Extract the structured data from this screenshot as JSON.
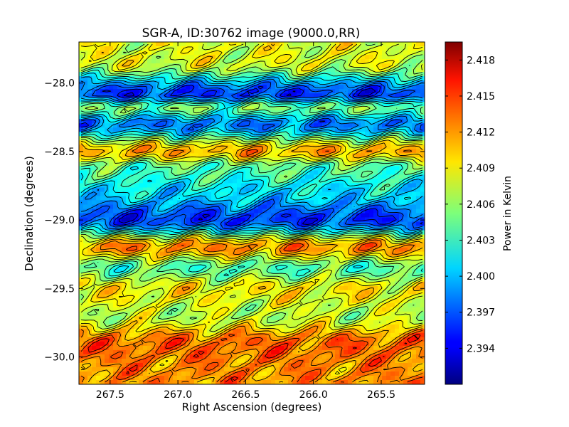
{
  "chart_data": {
    "type": "heatmap",
    "title": "SGR-A, ID:30762 image (9000.0,RR)",
    "xlabel": "Right Ascension (degrees)",
    "ylabel": "Declination (degrees)",
    "colorbar_label": "Power in Kelvin",
    "xlim": [
      267.73,
      265.18
    ],
    "ylim": [
      -30.2,
      -27.7
    ],
    "x_ticks": [
      267.5,
      267.0,
      266.5,
      266.0,
      265.5
    ],
    "x_tick_labels": [
      "267.5",
      "267.0",
      "266.5",
      "266.0",
      "265.5"
    ],
    "y_ticks": [
      -28.0,
      -28.5,
      -29.0,
      -29.5,
      -30.0
    ],
    "y_tick_labels": [
      "−28.0",
      "−28.5",
      "−29.0",
      "−29.5",
      "−30.0"
    ],
    "colorbar_range": [
      2.391,
      2.4195
    ],
    "colorbar_ticks": [
      2.394,
      2.397,
      2.4,
      2.403,
      2.406,
      2.409,
      2.412,
      2.415,
      2.418
    ],
    "colorbar_tick_labels": [
      "2.394",
      "2.397",
      "2.400",
      "2.403",
      "2.406",
      "2.409",
      "2.412",
      "2.415",
      "2.418"
    ],
    "colormap": "jet",
    "contours": true,
    "bands": [
      {
        "dec": -27.85,
        "value": 2.408
      },
      {
        "dec": -28.08,
        "value": 2.396
      },
      {
        "dec": -28.18,
        "value": 2.405
      },
      {
        "dec": -28.3,
        "value": 2.398
      },
      {
        "dec": -28.5,
        "value": 2.411
      },
      {
        "dec": -28.62,
        "value": 2.404
      },
      {
        "dec": -28.8,
        "value": 2.401
      },
      {
        "dec": -29.0,
        "value": 2.396
      },
      {
        "dec": -29.2,
        "value": 2.412
      },
      {
        "dec": -29.35,
        "value": 2.404
      },
      {
        "dec": -29.5,
        "value": 2.409
      },
      {
        "dec": -29.7,
        "value": 2.407
      },
      {
        "dec": -29.9,
        "value": 2.413
      },
      {
        "dec": -30.1,
        "value": 2.412
      }
    ]
  }
}
